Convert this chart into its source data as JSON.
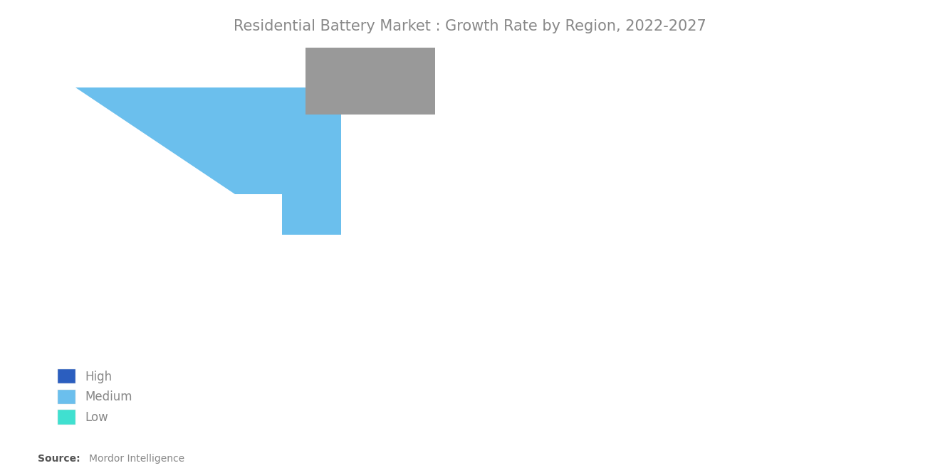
{
  "title": "Residential Battery Market : Growth Rate by Region, 2022-2027",
  "title_fontsize": 15,
  "title_color": "#888888",
  "source_bold": "Source:",
  "source_normal": " Mordor Intelligence",
  "background_color": "#ffffff",
  "legend_labels": [
    "High",
    "Medium",
    "Low"
  ],
  "legend_colors": [
    "#2B5EBF",
    "#6BBFED",
    "#40E0D0"
  ],
  "high_color": "#2B5EBF",
  "medium_color": "#6BBFED",
  "low_color": "#40E0D0",
  "gray_color": "#999999",
  "ocean_color": "#ffffff",
  "border_color": "#ffffff",
  "continent_colors": {
    "Africa": "#40E0D0",
    "North America": "#6BBFED",
    "South America": "#6BBFED",
    "Europe": "#6BBFED",
    "Asia": "#2B5EBF",
    "Oceania": "#2B5EBF"
  },
  "country_overrides": {
    "Canada": "#999999",
    "Greenland": "#999999",
    "Russia": "#6BBFED",
    "Kazakhstan": "#6BBFED",
    "Uzbekistan": "#6BBFED",
    "Turkmenistan": "#6BBFED",
    "Tajikistan": "#6BBFED",
    "Kyrgyzstan": "#6BBFED",
    "Azerbaijan": "#6BBFED",
    "Georgia": "#6BBFED",
    "Armenia": "#6BBFED",
    "Turkey": "#6BBFED",
    "Saudi Arabia": "#40E0D0",
    "Yemen": "#40E0D0",
    "Oman": "#40E0D0",
    "United Arab Emirates": "#40E0D0",
    "Qatar": "#40E0D0",
    "Kuwait": "#40E0D0",
    "Iraq": "#40E0D0",
    "Syria": "#40E0D0",
    "Jordan": "#40E0D0",
    "Israel": "#40E0D0",
    "Lebanon": "#40E0D0",
    "Iran": "#40E0D0",
    "Bahrain": "#40E0D0",
    "Cyprus": "#40E0D0"
  }
}
